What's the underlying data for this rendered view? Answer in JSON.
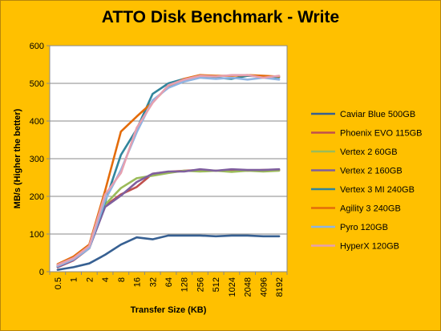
{
  "chart_data": {
    "type": "line",
    "title": "ATTO Disk Benchmark - Write",
    "xlabel": "Transfer Size (KB)",
    "ylabel": "MB/s (Higher the better)",
    "ylim": [
      0,
      600
    ],
    "yticks": [
      0,
      100,
      200,
      300,
      400,
      500,
      600
    ],
    "grid": true,
    "legend_position": "right",
    "categories": [
      "0.5",
      "1",
      "2",
      "4",
      "8",
      "16",
      "32",
      "64",
      "128",
      "256",
      "512",
      "1024",
      "2048",
      "4096",
      "8192"
    ],
    "series": [
      {
        "name": "Caviar Blue 500GB",
        "color": "#376092",
        "values": [
          5,
          12,
          22,
          45,
          72,
          91,
          86,
          96,
          96,
          96,
          94,
          96,
          96,
          94,
          94
        ]
      },
      {
        "name": "Phoenix EVO 115GB",
        "color": "#C0504D",
        "values": [
          12,
          30,
          62,
          175,
          205,
          225,
          260,
          265,
          268,
          270,
          268,
          270,
          268,
          270,
          270
        ]
      },
      {
        "name": "Vertex 2 60GB",
        "color": "#9BBB59",
        "values": [
          14,
          32,
          64,
          178,
          222,
          248,
          255,
          262,
          268,
          266,
          268,
          265,
          268,
          266,
          268
        ]
      },
      {
        "name": "Vertex 2 160GB",
        "color": "#7F5F9E",
        "values": [
          13,
          31,
          63,
          172,
          202,
          238,
          260,
          266,
          266,
          272,
          268,
          272,
          270,
          270,
          272
        ]
      },
      {
        "name": "Vertex 3 MI 240GB",
        "color": "#31859C",
        "values": [
          16,
          34,
          66,
          185,
          310,
          378,
          472,
          500,
          512,
          518,
          515,
          512,
          520,
          518,
          516
        ]
      },
      {
        "name": "Agility 3 240GB",
        "color": "#E46C0A",
        "values": [
          20,
          40,
          72,
          215,
          372,
          412,
          450,
          492,
          512,
          522,
          520,
          520,
          522,
          520,
          518
        ]
      },
      {
        "name": "Pyro 120GB",
        "color": "#8EB4E3",
        "values": [
          15,
          33,
          62,
          190,
          270,
          370,
          455,
          488,
          505,
          515,
          512,
          515,
          510,
          515,
          510
        ]
      },
      {
        "name": "HyperX 120GB",
        "color": "#E6A0B0",
        "values": [
          18,
          36,
          68,
          205,
          262,
          382,
          448,
          495,
          510,
          520,
          518,
          522,
          522,
          515,
          520
        ]
      }
    ]
  }
}
